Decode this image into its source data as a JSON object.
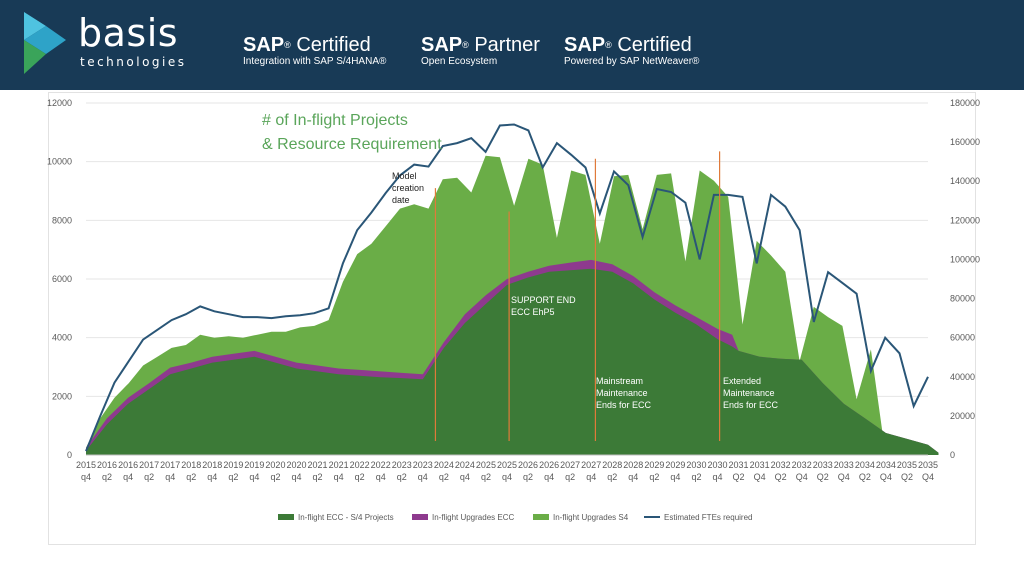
{
  "header": {
    "logo_word": "basis",
    "logo_sub": "technologies",
    "certs": [
      {
        "brand": "SAP",
        "reg": "®",
        "title": " Certified",
        "sub": "Integration with SAP S/4HANA®"
      },
      {
        "brand": "SAP",
        "reg": "®",
        "title": " Partner",
        "sub": "Open Ecosystem"
      },
      {
        "brand": "SAP",
        "reg": "®",
        "title": " Certified",
        "sub": "Powered by SAP NetWeaver®"
      }
    ],
    "colors": {
      "background": "#183a56",
      "logo_light": "#4fc3e0",
      "logo_mid": "#2ea3c8",
      "logo_green": "#3aa45a"
    }
  },
  "chart_data": {
    "type": "area",
    "title_lines": [
      "# of In-flight Projects",
      "& Resource Requirement"
    ],
    "categories": [
      [
        "2015",
        "q4"
      ],
      [
        "2016",
        "q2"
      ],
      [
        "2016",
        "q4"
      ],
      [
        "2017",
        "q2"
      ],
      [
        "2017",
        "q4"
      ],
      [
        "2018",
        "q2"
      ],
      [
        "2018",
        "q4"
      ],
      [
        "2019",
        "q2"
      ],
      [
        "2019",
        "q4"
      ],
      [
        "2020",
        "q2"
      ],
      [
        "2020",
        "q4"
      ],
      [
        "2021",
        "q2"
      ],
      [
        "2021",
        "q4"
      ],
      [
        "2022",
        "q2"
      ],
      [
        "2022",
        "q4"
      ],
      [
        "2023",
        "q2"
      ],
      [
        "2023",
        "q4"
      ],
      [
        "2024",
        "q2"
      ],
      [
        "2024",
        "q4"
      ],
      [
        "2025",
        "q2"
      ],
      [
        "2025",
        "q4"
      ],
      [
        "2026",
        "q2"
      ],
      [
        "2026",
        "q4"
      ],
      [
        "2027",
        "q2"
      ],
      [
        "2027",
        "q4"
      ],
      [
        "2028",
        "q2"
      ],
      [
        "2028",
        "q4"
      ],
      [
        "2029",
        "q2"
      ],
      [
        "2029",
        "q4"
      ],
      [
        "2030",
        "q2"
      ],
      [
        "2030",
        "q4"
      ],
      [
        "2031",
        "Q2"
      ],
      [
        "2031",
        "Q4"
      ],
      [
        "2032",
        "Q2"
      ],
      [
        "2032",
        "Q4"
      ],
      [
        "2033",
        "Q2"
      ],
      [
        "2033",
        "Q4"
      ],
      [
        "2034",
        "Q2"
      ],
      [
        "2034",
        "Q4"
      ],
      [
        "2035",
        "Q2"
      ],
      [
        "2035",
        "Q4"
      ]
    ],
    "y_left": {
      "min": 0,
      "max": 12000,
      "ticks": [
        "0",
        "2000",
        "4000",
        "6000",
        "8000",
        "10000",
        "12000"
      ]
    },
    "y_right": {
      "min": 0,
      "max": 180000,
      "ticks": [
        "0",
        "20000",
        "40000",
        "60000",
        "80000",
        "100000",
        "120000",
        "140000",
        "160000",
        "180000"
      ]
    },
    "series": [
      {
        "name": "In-flight ECC - S/4 Projects",
        "type": "area",
        "axis": "left",
        "color": "#3c7a37",
        "points": [
          [
            0,
            150
          ],
          [
            1,
            1050
          ],
          [
            2,
            1750
          ],
          [
            3,
            2250
          ],
          [
            4,
            2750
          ],
          [
            5,
            2950
          ],
          [
            6,
            3150
          ],
          [
            7,
            3250
          ],
          [
            8,
            3350
          ],
          [
            9,
            3150
          ],
          [
            10,
            2950
          ],
          [
            11,
            2850
          ],
          [
            12,
            2750
          ],
          [
            13,
            2700
          ],
          [
            14,
            2650
          ],
          [
            15,
            2620
          ],
          [
            16,
            2580
          ],
          [
            17,
            3650
          ],
          [
            18,
            4500
          ],
          [
            19,
            5150
          ],
          [
            20,
            5800
          ],
          [
            21,
            6050
          ],
          [
            22,
            6250
          ],
          [
            23,
            6300
          ],
          [
            24,
            6350
          ],
          [
            25,
            6250
          ],
          [
            26,
            5850
          ],
          [
            27,
            5300
          ],
          [
            28,
            4850
          ],
          [
            29,
            4450
          ],
          [
            30,
            3950
          ],
          [
            30.7,
            3700
          ],
          [
            31,
            3550
          ],
          [
            32,
            3350
          ],
          [
            33,
            3280
          ],
          [
            34,
            3250
          ],
          [
            35,
            2450
          ],
          [
            36,
            1750
          ],
          [
            37,
            1250
          ],
          [
            38,
            750
          ],
          [
            39,
            550
          ],
          [
            40,
            350
          ],
          [
            40.5,
            80
          ]
        ]
      },
      {
        "name": "In-flight Upgrades ECC",
        "type": "area",
        "axis": "left",
        "color": "#8e3a8e",
        "points": [
          [
            0,
            250
          ],
          [
            1,
            1250
          ],
          [
            2,
            1950
          ],
          [
            3,
            2450
          ],
          [
            4,
            2980
          ],
          [
            5,
            3150
          ],
          [
            6,
            3350
          ],
          [
            7,
            3450
          ],
          [
            8,
            3550
          ],
          [
            9,
            3350
          ],
          [
            10,
            3150
          ],
          [
            11,
            3050
          ],
          [
            12,
            2950
          ],
          [
            13,
            2900
          ],
          [
            14,
            2850
          ],
          [
            15,
            2800
          ],
          [
            16,
            2750
          ],
          [
            17,
            3850
          ],
          [
            18,
            4800
          ],
          [
            19,
            5450
          ],
          [
            20,
            6000
          ],
          [
            21,
            6250
          ],
          [
            22,
            6450
          ],
          [
            23,
            6560
          ],
          [
            24,
            6650
          ],
          [
            25,
            6500
          ],
          [
            26,
            6100
          ],
          [
            27,
            5550
          ],
          [
            28,
            5100
          ],
          [
            29,
            4700
          ],
          [
            30,
            4300
          ],
          [
            30.7,
            4100
          ],
          [
            31,
            3550
          ],
          [
            32,
            3350
          ],
          [
            33,
            3280
          ],
          [
            34,
            3250
          ],
          [
            35,
            2450
          ],
          [
            36,
            1750
          ],
          [
            37,
            1250
          ],
          [
            38,
            750
          ],
          [
            39,
            550
          ],
          [
            40,
            350
          ],
          [
            40.5,
            80
          ]
        ]
      },
      {
        "name": "In-flight Upgrades S4",
        "type": "area",
        "axis": "left",
        "color": "#6aad47",
        "points": [
          [
            0,
            250
          ],
          [
            1,
            1250
          ],
          [
            2,
            1950
          ],
          [
            3,
            2450
          ],
          [
            4,
            3050
          ],
          [
            5,
            3350
          ],
          [
            6,
            3650
          ],
          [
            7,
            3750
          ],
          [
            8,
            4100
          ],
          [
            9,
            4000
          ],
          [
            10,
            4050
          ],
          [
            11,
            4000
          ],
          [
            12,
            4100
          ],
          [
            13,
            4200
          ],
          [
            14,
            4200
          ],
          [
            15,
            4350
          ],
          [
            16,
            4400
          ],
          [
            17,
            4600
          ],
          [
            18,
            5900
          ],
          [
            19,
            6850
          ],
          [
            20,
            7200
          ],
          [
            21,
            7800
          ],
          [
            22,
            8400
          ],
          [
            23,
            8550
          ],
          [
            24,
            8400
          ],
          [
            25,
            9400
          ],
          [
            26,
            9450
          ],
          [
            27,
            8950
          ],
          [
            28,
            10200
          ],
          [
            29,
            10150
          ],
          [
            30,
            8500
          ],
          [
            31,
            10100
          ],
          [
            32,
            9900
          ],
          [
            33,
            7400
          ],
          [
            34,
            9700
          ],
          [
            35,
            9550
          ],
          [
            36,
            7200
          ],
          [
            37,
            9500
          ],
          [
            38,
            9550
          ],
          [
            39,
            7700
          ],
          [
            40,
            9550
          ],
          [
            41,
            9600
          ],
          [
            42,
            6600
          ],
          [
            43,
            9700
          ],
          [
            44,
            9350
          ],
          [
            45,
            8800
          ],
          [
            46,
            4450
          ],
          [
            47,
            7300
          ],
          [
            48,
            6800
          ],
          [
            49,
            6250
          ],
          [
            50,
            3200
          ],
          [
            51,
            5050
          ],
          [
            52,
            4700
          ],
          [
            53,
            4400
          ],
          [
            54,
            1900
          ],
          [
            55,
            3600
          ],
          [
            56,
            100
          ]
        ]
      },
      {
        "name": "Estimated FTEs required",
        "type": "line",
        "axis": "right",
        "color": "#2a5677",
        "points": [
          [
            0,
            2000
          ],
          [
            1,
            20000
          ],
          [
            2,
            37000
          ],
          [
            3,
            48000
          ],
          [
            4,
            59000
          ],
          [
            5,
            64000
          ],
          [
            6,
            69000
          ],
          [
            7,
            72000
          ],
          [
            8,
            76000
          ],
          [
            9,
            73500
          ],
          [
            10,
            72000
          ],
          [
            11,
            70500
          ],
          [
            12,
            70500
          ],
          [
            13,
            70000
          ],
          [
            14,
            71000
          ],
          [
            15,
            71500
          ],
          [
            16,
            72500
          ],
          [
            17,
            75000
          ],
          [
            18,
            98000
          ],
          [
            19,
            115000
          ],
          [
            20,
            124000
          ],
          [
            21,
            134000
          ],
          [
            22,
            143000
          ],
          [
            23,
            148500
          ],
          [
            24,
            147500
          ],
          [
            25,
            158000
          ],
          [
            26,
            159500
          ],
          [
            27,
            162000
          ],
          [
            28,
            155000
          ],
          [
            29,
            168500
          ],
          [
            30,
            169000
          ],
          [
            31,
            166000
          ],
          [
            32,
            147000
          ],
          [
            33,
            159500
          ],
          [
            34,
            153500
          ],
          [
            35,
            147000
          ],
          [
            36,
            123500
          ],
          [
            37,
            145000
          ],
          [
            38,
            138000
          ],
          [
            39,
            111500
          ],
          [
            40,
            136000
          ],
          [
            41,
            134500
          ],
          [
            42,
            129000
          ],
          [
            43,
            100000
          ],
          [
            44,
            133000
          ],
          [
            45,
            133000
          ],
          [
            46,
            132000
          ],
          [
            47,
            98000
          ],
          [
            48,
            133000
          ],
          [
            49,
            127000
          ],
          [
            50,
            115000
          ],
          [
            51,
            68000
          ],
          [
            52,
            93500
          ],
          [
            53,
            88000
          ],
          [
            54,
            82500
          ],
          [
            55,
            43000
          ],
          [
            56,
            60000
          ],
          [
            57,
            52000
          ],
          [
            58,
            25000
          ],
          [
            59,
            40000
          ]
        ]
      }
    ],
    "annotations": [
      {
        "lines": [
          "Model",
          "creation",
          "date"
        ],
        "color": "#222222",
        "x_index": 16.6
      },
      {
        "lines": [
          "SUPPORT END",
          "ECC EhP5"
        ],
        "color": "#ffffff",
        "x_index": 20.1
      },
      {
        "lines": [
          "Mainstream",
          "Maintenance",
          "Ends for ECC"
        ],
        "color": "#ffffff",
        "x_index": 24.2
      },
      {
        "lines": [
          "Extended",
          "Maintenance",
          "Ends for ECC"
        ],
        "color": "#ffffff",
        "x_index": 30.4
      }
    ],
    "marker_lines": [
      {
        "x_index": 16.6,
        "top_value": 9100,
        "color": "#e07a3a"
      },
      {
        "x_index": 20.1,
        "top_value": 8300,
        "color": "#e07a3a"
      },
      {
        "x_index": 24.2,
        "top_value": 10100,
        "color": "#e07a3a"
      },
      {
        "x_index": 30.1,
        "top_value": 10350,
        "color": "#e07a3a"
      }
    ],
    "legend": [
      {
        "label": "In-flight ECC - S/4 Projects",
        "color": "#3c7a37"
      },
      {
        "label": "In-flight Upgrades ECC",
        "color": "#8e3a8e"
      },
      {
        "label": "In-flight Upgrades S4",
        "color": "#6aad47"
      },
      {
        "label": "Estimated FTEs required",
        "color": "#2a5677",
        "line": true
      }
    ]
  }
}
